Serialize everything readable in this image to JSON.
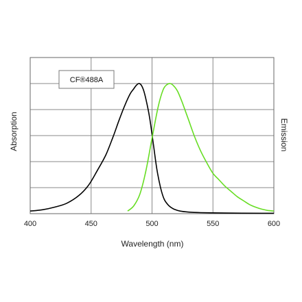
{
  "chart_data": {
    "type": "line",
    "title": "",
    "legend": "CF®488A",
    "legend_placement": "top-left",
    "xlabel": "Wavelength (nm)",
    "ylabel_left": "Absorption",
    "ylabel_right": "Emission",
    "xlim": [
      400,
      600
    ],
    "ylim": [
      0,
      1
    ],
    "grid": true,
    "x_ticks": [
      "400",
      "450",
      "500",
      "550",
      "600"
    ],
    "series": [
      {
        "name": "Absorption",
        "color": "#000000",
        "x": [
          400,
          410,
          420,
          430,
          440,
          448,
          455,
          462,
          468,
          473,
          478,
          482,
          485,
          487,
          489,
          491,
          493,
          495,
          498,
          501,
          504,
          507,
          510,
          514,
          518,
          523,
          530,
          540,
          560,
          590,
          600
        ],
        "y": [
          0.02,
          0.03,
          0.05,
          0.08,
          0.14,
          0.22,
          0.33,
          0.45,
          0.59,
          0.72,
          0.84,
          0.92,
          0.96,
          0.985,
          1.0,
          0.99,
          0.95,
          0.88,
          0.74,
          0.54,
          0.34,
          0.2,
          0.11,
          0.06,
          0.035,
          0.02,
          0.012,
          0.008,
          0.005,
          0.003,
          0.003
        ]
      },
      {
        "name": "Emission",
        "color": "#66dd22",
        "x": [
          480,
          485,
          490,
          495,
          500,
          505,
          509,
          512,
          515,
          518,
          521,
          525,
          530,
          535,
          540,
          545,
          550,
          555,
          560,
          565,
          570,
          575,
          580,
          585,
          590,
          595,
          600
        ],
        "y": [
          0.02,
          0.06,
          0.15,
          0.33,
          0.58,
          0.82,
          0.95,
          0.99,
          1.0,
          0.98,
          0.94,
          0.85,
          0.72,
          0.59,
          0.48,
          0.39,
          0.31,
          0.26,
          0.21,
          0.17,
          0.13,
          0.1,
          0.07,
          0.05,
          0.035,
          0.025,
          0.02
        ]
      }
    ]
  }
}
